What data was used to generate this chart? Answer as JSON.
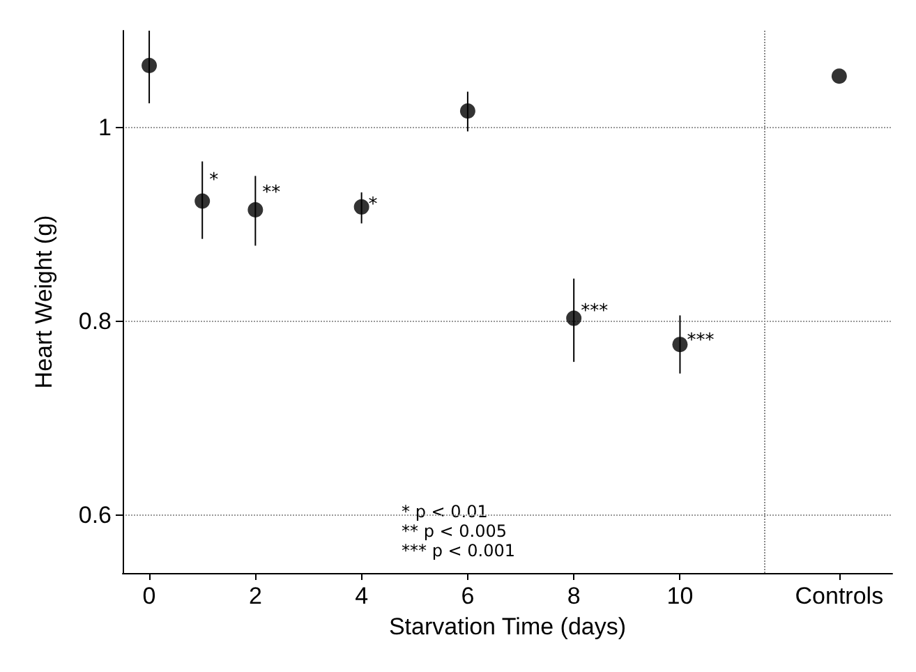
{
  "chart_data": {
    "type": "scatter",
    "xlabel": "Starvation Time (days)",
    "ylabel": "Heart Weight (g)",
    "x": [
      0,
      1,
      2,
      4,
      6,
      8,
      10,
      13
    ],
    "series": [
      {
        "color": "#000000",
        "values": [
          1.064,
          0.924,
          0.915,
          0.918,
          1.017,
          0.803,
          0.776,
          1.053
        ],
        "errors": [
          [
            1.025,
            1.1
          ],
          [
            0.885,
            0.965
          ],
          [
            0.878,
            0.95
          ],
          [
            0.901,
            0.933
          ],
          [
            0.996,
            1.037
          ],
          [
            0.758,
            0.844
          ],
          [
            0.746,
            0.806
          ],
          null
        ]
      }
    ],
    "xlim": [
      -0.5,
      14
    ],
    "xticks": [
      0,
      2,
      4,
      6,
      8,
      10,
      {
        "value": 13,
        "label": "Controls"
      }
    ],
    "ylim": [
      0.54,
      1.1
    ],
    "yticks": [
      0.6,
      0.8,
      1
    ],
    "grid": "y",
    "marker": "circle",
    "ref_lines": [
      {
        "axis": "x",
        "value": 11.6,
        "line_style": "dotted",
        "color": "#888888"
      }
    ],
    "annotations": [
      {
        "text": "*",
        "x": 1,
        "y": 0.945
      },
      {
        "text": "**",
        "x": 2,
        "y": 0.932
      },
      {
        "text": "*",
        "x": 4,
        "y": 0.92
      },
      {
        "text": "***",
        "x": 8,
        "y": 0.81
      },
      {
        "text": "***",
        "x": 10,
        "y": 0.78
      },
      "* p < 0.01",
      "** p < 0.005",
      "*** p < 0.001"
    ]
  }
}
